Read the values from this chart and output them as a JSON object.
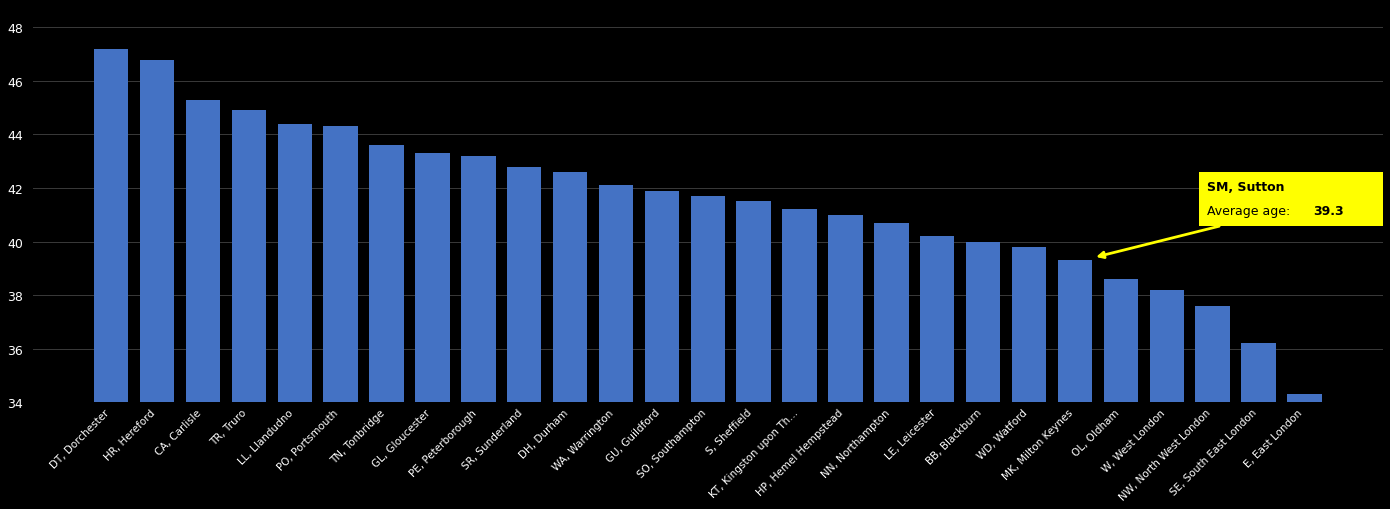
{
  "categories": [
    "DT, Dorchester",
    "HR, Hereford",
    "CA, Carlisle",
    "TR, Truro",
    "LL, Llandudno",
    "PO, Portsmouth",
    "TN, Tonbridge",
    "GL, Gloucester",
    "PE, Peterborough",
    "SR, Sunderland",
    "DH, Durham",
    "WA, Warrington",
    "GU, Guildford",
    "SO, Southampton",
    "S, Sheffield",
    "KT, Kingston upon Th...",
    "HP, Hemel Hempstead",
    "NN, Northampton",
    "LE, Leicester",
    "BB, Blackburn",
    "WD, Watford",
    "MK, Milton Keynes",
    "OL, Oldham",
    "W, West London",
    "NW, North West London",
    "SE, South East London",
    "E, East London"
  ],
  "values": [
    47.2,
    46.8,
    45.3,
    44.9,
    44.4,
    44.3,
    43.6,
    43.3,
    43.2,
    42.8,
    42.6,
    42.1,
    41.9,
    41.7,
    41.5,
    41.2,
    41.0,
    40.7,
    40.2,
    40.0,
    39.8,
    39.3,
    38.6,
    38.2,
    37.6,
    36.2,
    34.3
  ],
  "highlighted_index": 21,
  "highlight_value": 39.3,
  "bar_color": "#4472C4",
  "annotation_bg_color": "#FFFF00",
  "background_color": "#000000",
  "text_color": "#FFFFFF",
  "grid_color": "#3a3a3a",
  "ylim": [
    34,
    48.8
  ],
  "yticks": [
    34,
    36,
    38,
    40,
    42,
    44,
    46,
    48
  ]
}
